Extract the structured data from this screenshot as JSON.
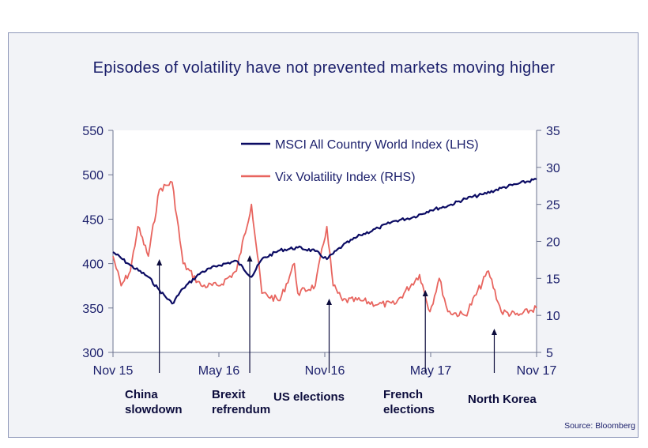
{
  "title": "Episodes of volatility have not prevented markets moving higher",
  "source": "Source: Bloomberg",
  "colors": {
    "msci": "#0b0b63",
    "vix": "#e8655f",
    "text": "#1b1f6b",
    "annotation": "#0c0c3c"
  },
  "chart_data": {
    "type": "line",
    "title": "Episodes of volatility have not prevented markets moving higher",
    "x_ticks": [
      "Nov 15",
      "May 16",
      "Nov 16",
      "May 17",
      "Nov 17"
    ],
    "xlim": [
      "2015-11",
      "2017-11"
    ],
    "y_left": {
      "lim": [
        300,
        550
      ],
      "ticks": [
        "300",
        "350",
        "400",
        "450",
        "500",
        "550"
      ]
    },
    "y_right": {
      "lim": [
        5,
        35
      ],
      "ticks": [
        "5",
        "10",
        "15",
        "20",
        "25",
        "30",
        "35"
      ]
    },
    "legend_position": "top-right",
    "series": [
      {
        "name": "MSCI All Country World Index (LHS)",
        "axis": "left",
        "x": [
          "2015-11-01",
          "2015-12-01",
          "2016-01-01",
          "2016-01-20",
          "2016-02-11",
          "2016-03-01",
          "2016-04-01",
          "2016-05-01",
          "2016-06-01",
          "2016-06-27",
          "2016-07-15",
          "2016-08-15",
          "2016-09-15",
          "2016-10-15",
          "2016-11-04",
          "2016-12-01",
          "2017-01-01",
          "2017-02-01",
          "2017-03-01",
          "2017-04-01",
          "2017-05-01",
          "2017-06-01",
          "2017-07-01",
          "2017-08-01",
          "2017-09-01",
          "2017-10-01",
          "2017-11-01"
        ],
        "y": [
          413,
          398,
          385,
          370,
          355,
          372,
          390,
          398,
          403,
          385,
          405,
          415,
          418,
          414,
          405,
          420,
          432,
          440,
          448,
          452,
          460,
          465,
          473,
          478,
          485,
          490,
          495
        ]
      },
      {
        "name": "Vix Volatility Index (RHS)",
        "axis": "right",
        "x": [
          "2015-11-01",
          "2015-11-15",
          "2015-12-01",
          "2015-12-14",
          "2016-01-01",
          "2016-01-20",
          "2016-02-11",
          "2016-03-01",
          "2016-04-01",
          "2016-05-01",
          "2016-06-01",
          "2016-06-27",
          "2016-07-15",
          "2016-08-15",
          "2016-09-09",
          "2016-09-15",
          "2016-10-15",
          "2016-11-04",
          "2016-11-15",
          "2016-12-01",
          "2017-01-01",
          "2017-02-01",
          "2017-03-01",
          "2017-04-13",
          "2017-05-01",
          "2017-05-17",
          "2017-06-01",
          "2017-07-01",
          "2017-08-10",
          "2017-09-01",
          "2017-10-01",
          "2017-11-01"
        ],
        "y": [
          18,
          14,
          16,
          22,
          18,
          27,
          28,
          17,
          14,
          14,
          16,
          25,
          13,
          12,
          17,
          13,
          14,
          22,
          14,
          12,
          12,
          11.5,
          11.5,
          15.5,
          10.5,
          15,
          10.5,
          10,
          16,
          10.5,
          10,
          11
        ]
      }
    ],
    "annotations": [
      {
        "text": [
          "China",
          "slowdown"
        ],
        "x": "2016-01-20"
      },
      {
        "text": [
          "Brexit",
          "refrendum"
        ],
        "x": "2016-06-24"
      },
      {
        "text": [
          "US elections"
        ],
        "x": "2016-11-08"
      },
      {
        "text": [
          "French",
          "elections"
        ],
        "x": "2017-04-23"
      },
      {
        "text": [
          "North Korea"
        ],
        "x": "2017-08-20"
      }
    ]
  }
}
